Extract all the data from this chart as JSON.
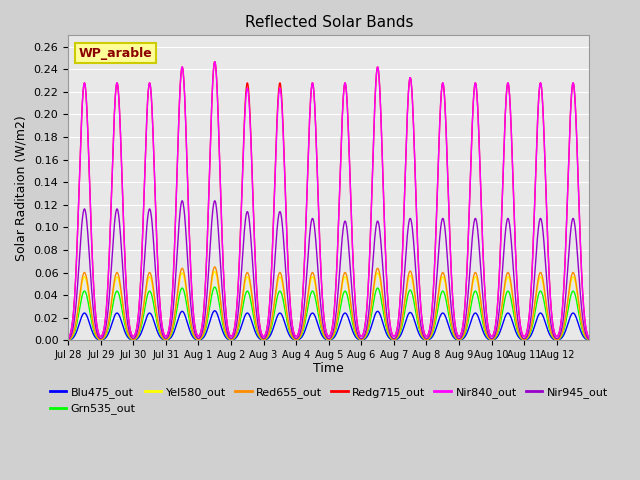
{
  "title": "Reflected Solar Bands",
  "xlabel": "Time",
  "ylabel": "Solar Raditaion (W/m2)",
  "ylim": [
    0,
    0.27
  ],
  "yticks": [
    0.0,
    0.02,
    0.04,
    0.06,
    0.08,
    0.1,
    0.12,
    0.14,
    0.16,
    0.18,
    0.2,
    0.22,
    0.24,
    0.26
  ],
  "legend_label": "WP_arable",
  "series": {
    "Blu475_out": {
      "color": "#0000ff",
      "peak": 0.025
    },
    "Grn535_out": {
      "color": "#00ff00",
      "peak": 0.045
    },
    "Yel580_out": {
      "color": "#ffff00",
      "peak": 0.058
    },
    "Red655_out": {
      "color": "#ff8c00",
      "peak": 0.062
    },
    "Redg715_out": {
      "color": "#ff0000",
      "peak": 0.235
    },
    "Nir840_out": {
      "color": "#ff00ff",
      "peak": 0.235
    },
    "Nir945_out": {
      "color": "#9900cc",
      "peak": 0.12
    }
  },
  "x_tick_labels": [
    "Jul 28",
    "Jul 29",
    "Jul 30",
    "Jul 31",
    "Aug 1",
    "Aug 2",
    "Aug 3",
    "Aug 4",
    "Aug 5",
    "Aug 6",
    "Aug 7",
    "Aug 8",
    "Aug 9",
    "Aug 10",
    "Aug 11",
    "Aug 12"
  ],
  "n_days": 16,
  "points_per_day": 96,
  "day_peak_fractions": [
    0.97,
    0.97,
    0.97,
    1.03,
    1.05,
    0.97,
    0.97,
    0.97,
    0.97,
    1.03,
    0.99,
    0.97,
    0.97,
    0.97,
    0.97,
    0.97
  ],
  "nir840_peak_fractions": [
    0.97,
    0.97,
    0.97,
    1.03,
    1.05,
    0.95,
    0.95,
    0.97,
    0.97,
    1.03,
    0.99,
    0.97,
    0.97,
    0.97,
    0.97,
    0.97
  ],
  "nir945_peak_fractions": [
    0.97,
    0.97,
    0.97,
    1.03,
    1.03,
    0.95,
    0.95,
    0.9,
    0.88,
    0.88,
    0.9,
    0.9,
    0.9,
    0.9,
    0.9,
    0.9
  ],
  "plot_order": [
    "Blu475_out",
    "Grn535_out",
    "Yel580_out",
    "Red655_out",
    "Nir945_out",
    "Redg715_out",
    "Nir840_out"
  ],
  "legend_order": [
    "Blu475_out",
    "Grn535_out",
    "Yel580_out",
    "Red655_out",
    "Redg715_out",
    "Nir840_out",
    "Nir945_out"
  ]
}
